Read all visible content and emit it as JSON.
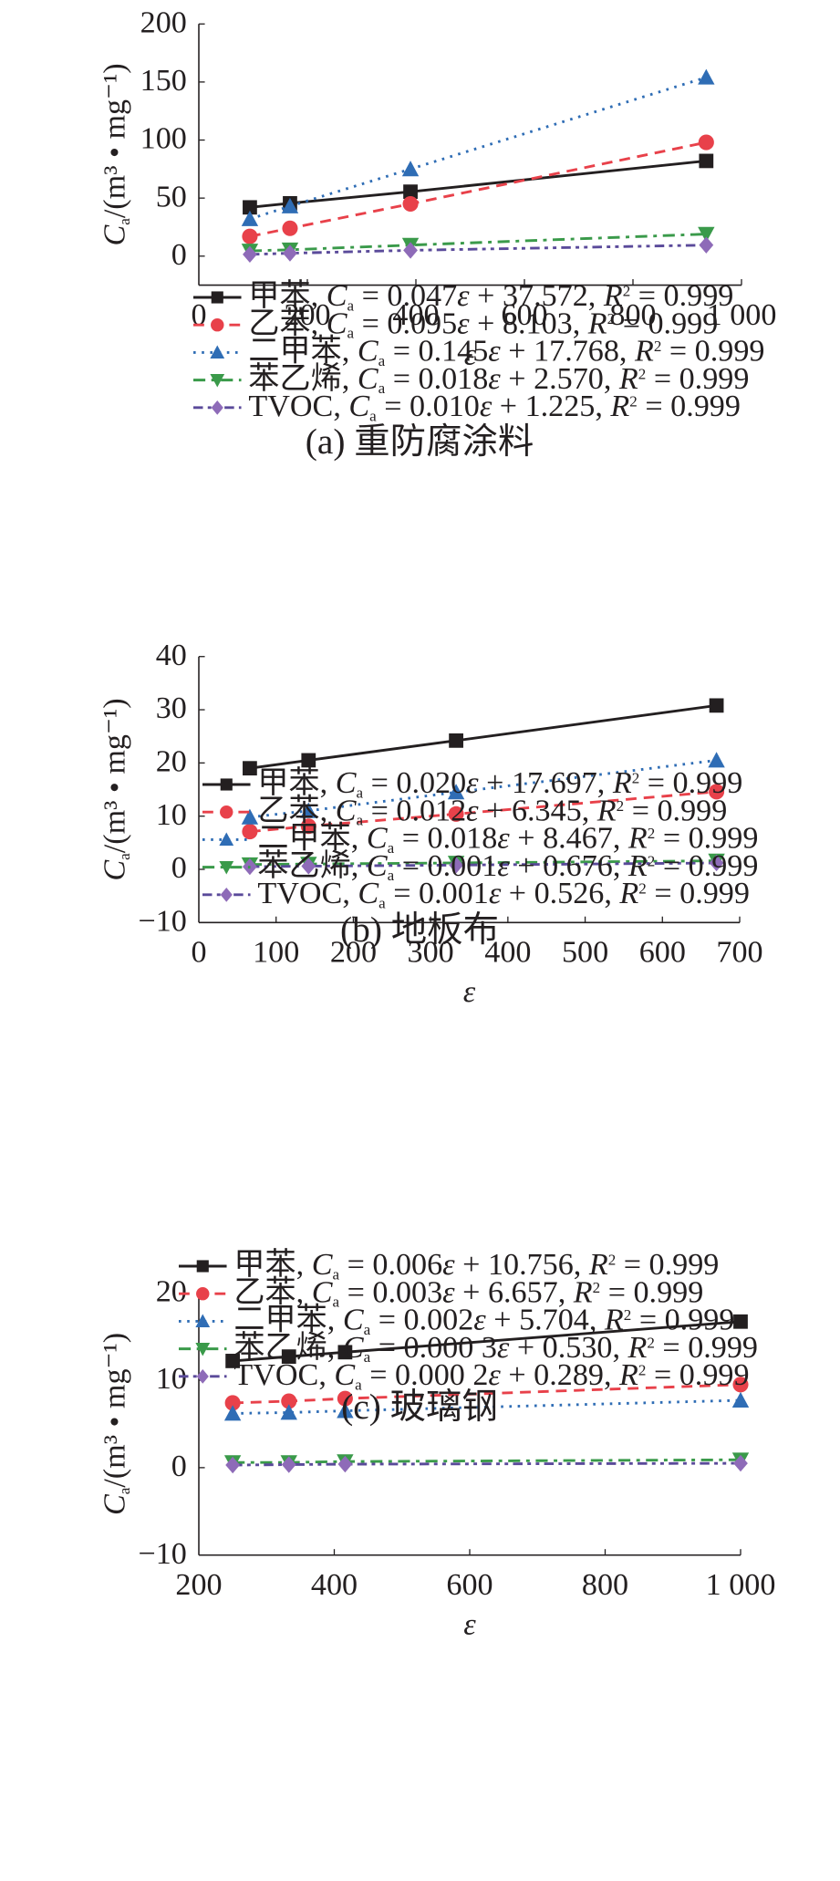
{
  "figure": {
    "colors": {
      "axis": "#231f20",
      "甲苯": "#231f20",
      "乙苯": "#e8414a",
      "二甲苯": "#2f6db5",
      "苯乙烯": "#3a9a4a",
      "TVOC": "#8e6bb8",
      "TVOC_line": "#5a4a9a"
    }
  },
  "chart_data": [
    {
      "type": "line",
      "panel": "a",
      "caption": "(a) 重防腐涂料",
      "xlabel": "ε",
      "ylabel_main": "C",
      "ylabel_sub": "a",
      "ylabel_unit": "/(m³ • mg⁻¹)",
      "xlim": [
        0,
        1000
      ],
      "ylim": [
        -25,
        200
      ],
      "xticks": [
        0,
        200,
        400,
        600,
        800,
        1000
      ],
      "xtick_labels": [
        "0",
        "200",
        "400",
        "600",
        "800",
        "1 000"
      ],
      "yticks": [
        0,
        50,
        100,
        150,
        200
      ],
      "ytick_labels": [
        "0",
        "50",
        "100",
        "150",
        "200"
      ],
      "grid": false,
      "legend_position": "below",
      "x": [
        94,
        168,
        390,
        935
      ],
      "series": [
        {
          "name": "甲苯",
          "marker": "square",
          "dash": "solid",
          "values": [
            42,
            45.5,
            55.5,
            82
          ],
          "legend": {
            "compound": "甲苯",
            "slope": "0.047",
            "intercept": "37.572",
            "r2": "0.999"
          }
        },
        {
          "name": "乙苯",
          "marker": "circle",
          "dash": "dashed",
          "values": [
            17,
            24,
            45,
            98
          ],
          "legend": {
            "compound": "乙苯",
            "slope": "0.095",
            "intercept": "8.103",
            "r2": "0.999"
          }
        },
        {
          "name": "二甲苯",
          "marker": "triangle-up",
          "dash": "dotted",
          "values": [
            32,
            43,
            75,
            154
          ],
          "legend": {
            "compound": "二甲苯",
            "slope": "0.145",
            "intercept": "17.768",
            "r2": "0.999"
          }
        },
        {
          "name": "苯乙烯",
          "marker": "triangle-down",
          "dash": "dashdot",
          "values": [
            4.5,
            5.5,
            9.5,
            19
          ],
          "legend": {
            "compound": "苯乙烯",
            "slope": "0.018",
            "intercept": "2.570",
            "r2": "0.999"
          }
        },
        {
          "name": "TVOC",
          "marker": "diamond",
          "dash": "dashdotdot",
          "values": [
            1.5,
            2.5,
            5,
            9.5
          ],
          "legend": {
            "compound": "TVOC",
            "slope": "0.010",
            "intercept": "1.225",
            "r2": "0.999"
          }
        }
      ]
    },
    {
      "type": "line",
      "panel": "b",
      "caption": "(b) 地板布",
      "xlabel": "ε",
      "ylabel_main": "C",
      "ylabel_sub": "a",
      "ylabel_unit": "/(m³ • mg⁻¹)",
      "xlim": [
        0,
        700
      ],
      "ylim": [
        -10,
        40
      ],
      "xticks": [
        0,
        100,
        200,
        300,
        400,
        500,
        600,
        700
      ],
      "xtick_labels": [
        "0",
        "100",
        "200",
        "300",
        "400",
        "500",
        "600",
        "700"
      ],
      "yticks": [
        -10,
        0,
        10,
        20,
        30,
        40
      ],
      "ytick_labels": [
        "−10",
        "0",
        "10",
        "20",
        "30",
        "40"
      ],
      "grid": false,
      "legend_position": "below",
      "x": [
        66,
        142,
        333,
        670
      ],
      "series": [
        {
          "name": "甲苯",
          "marker": "square",
          "dash": "solid",
          "values": [
            19.0,
            20.5,
            24.2,
            30.8
          ],
          "legend": {
            "compound": "甲苯",
            "slope": "0.020",
            "intercept": "17.697",
            "r2": "0.999"
          }
        },
        {
          "name": "乙苯",
          "marker": "circle",
          "dash": "dashed",
          "values": [
            7.1,
            8.1,
            10.4,
            14.6
          ],
          "legend": {
            "compound": "乙苯",
            "slope": "0.012",
            "intercept": "6.345",
            "r2": "0.999"
          }
        },
        {
          "name": "二甲苯",
          "marker": "triangle-up",
          "dash": "dotted",
          "values": [
            9.8,
            11.0,
            14.5,
            20.5
          ],
          "legend": {
            "compound": "二甲苯",
            "slope": "0.018",
            "intercept": "8.467",
            "r2": "0.999"
          }
        },
        {
          "name": "苯乙烯",
          "marker": "triangle-down",
          "dash": "dashdot",
          "values": [
            0.9,
            1.0,
            1.2,
            1.6
          ],
          "legend": {
            "compound": "苯乙烯",
            "slope": "0.001",
            "intercept": "0.676",
            "r2": "0.999"
          }
        },
        {
          "name": "TVOC",
          "marker": "diamond",
          "dash": "dashdotdot",
          "values": [
            0.5,
            0.6,
            0.8,
            1.2
          ],
          "legend": {
            "compound": "TVOC",
            "slope": "0.001",
            "intercept": "0.526",
            "r2": "0.999"
          }
        }
      ]
    },
    {
      "type": "line",
      "panel": "c",
      "caption": "(c) 玻璃钢",
      "xlabel": "ε",
      "ylabel_main": "C",
      "ylabel_sub": "a",
      "ylabel_unit": "/(m³ • mg⁻¹)",
      "xlim": [
        200,
        1000
      ],
      "ylim": [
        -10,
        20
      ],
      "xticks": [
        200,
        400,
        600,
        800,
        1000
      ],
      "xtick_labels": [
        "200",
        "400",
        "600",
        "800",
        "1 000"
      ],
      "yticks": [
        -10,
        0,
        10,
        20
      ],
      "ytick_labels": [
        "−10",
        "0",
        "10",
        "20"
      ],
      "grid": false,
      "legend_position": "below",
      "x": [
        250,
        333,
        416,
        1000
      ],
      "series": [
        {
          "name": "甲苯",
          "marker": "square",
          "dash": "solid",
          "values": [
            12.2,
            12.7,
            13.2,
            16.7
          ],
          "legend": {
            "compound": "甲苯",
            "slope": "0.006",
            "intercept": "10.756",
            "r2": "0.999"
          }
        },
        {
          "name": "乙苯",
          "marker": "circle",
          "dash": "dashed",
          "values": [
            7.4,
            7.6,
            7.9,
            9.5
          ],
          "legend": {
            "compound": "乙苯",
            "slope": "0.003",
            "intercept": "6.657",
            "r2": "0.999"
          }
        },
        {
          "name": "二甲苯",
          "marker": "triangle-up",
          "dash": "dotted",
          "values": [
            6.2,
            6.3,
            6.5,
            7.7
          ],
          "legend": {
            "compound": "二甲苯",
            "slope": "0.002",
            "intercept": "5.704",
            "r2": "0.999"
          }
        },
        {
          "name": "苯乙烯",
          "marker": "triangle-down",
          "dash": "dashdot",
          "values": [
            0.6,
            0.6,
            0.7,
            0.9
          ],
          "legend": {
            "compound": "苯乙烯",
            "slope": "0.000 3",
            "intercept": "0.530",
            "r2": "0.999"
          }
        },
        {
          "name": "TVOC",
          "marker": "diamond",
          "dash": "dashdotdot",
          "values": [
            0.3,
            0.35,
            0.4,
            0.5
          ],
          "legend": {
            "compound": "TVOC",
            "slope": "0.000 2",
            "intercept": "0.289",
            "r2": "0.999"
          }
        }
      ]
    }
  ]
}
